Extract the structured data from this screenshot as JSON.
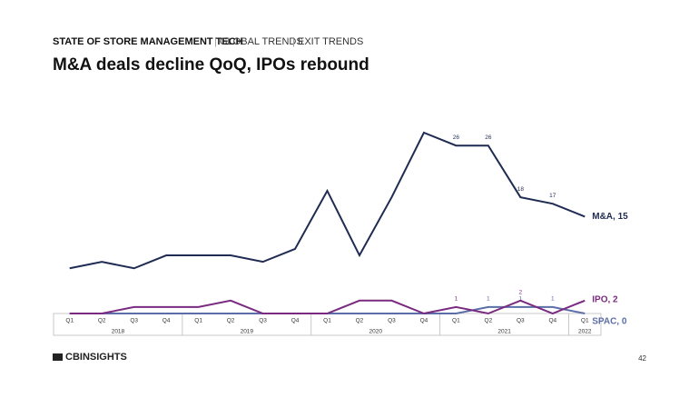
{
  "header": {
    "section": "STATE OF STORE MANAGEMENT TECH",
    "crumbs": [
      "GLOBAL TRENDS",
      "EXIT TRENDS"
    ]
  },
  "chart_data": {
    "type": "line",
    "title": "M&A deals decline QoQ, IPOs rebound",
    "categories": [
      "Q1",
      "Q2",
      "Q3",
      "Q4",
      "Q1",
      "Q2",
      "Q3",
      "Q4",
      "Q1",
      "Q2",
      "Q3",
      "Q4",
      "Q1",
      "Q2",
      "Q3",
      "Q4",
      "Q1"
    ],
    "year_groups": [
      {
        "label": "2018",
        "count": 4
      },
      {
        "label": "2019",
        "count": 4
      },
      {
        "label": "2020",
        "count": 4
      },
      {
        "label": "2021",
        "count": 4
      },
      {
        "label": "2022",
        "count": 1
      }
    ],
    "ylim": [
      0,
      28
    ],
    "series": [
      {
        "name": "M&A",
        "end_label": "M&A, 15",
        "color": "#1f2b52",
        "values": [
          7,
          8,
          7,
          9,
          9,
          9,
          8,
          10,
          19,
          9,
          18,
          28,
          26,
          26,
          18,
          17,
          15
        ]
      },
      {
        "name": "IPO",
        "end_label": "IPO, 2",
        "color": "#7a2b80",
        "values": [
          0,
          0,
          1,
          1,
          1,
          2,
          0,
          0,
          0,
          2,
          2,
          0,
          1,
          0,
          2,
          0,
          2
        ]
      },
      {
        "name": "SPAC",
        "end_label": "SPAC, 0",
        "color": "#5b6ea8",
        "values": [
          0,
          0,
          0,
          0,
          0,
          0,
          0,
          0,
          0,
          0,
          0,
          0,
          0,
          1,
          1,
          1,
          0
        ]
      }
    ]
  },
  "footer": {
    "logo": "CBINSIGHTS",
    "page": "42"
  }
}
